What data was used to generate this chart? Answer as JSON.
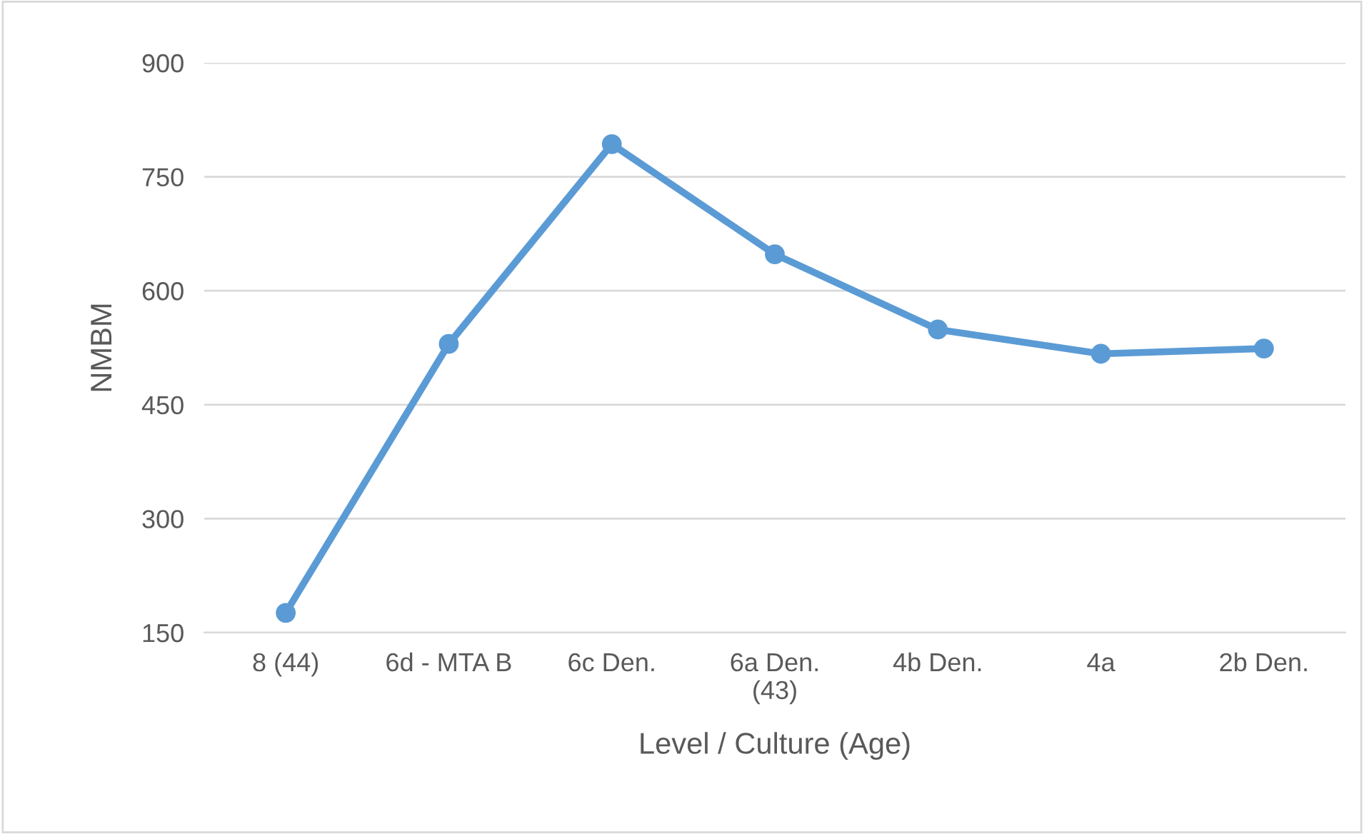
{
  "chart_data": {
    "type": "line",
    "xlabel": "Level / Culture (Age)",
    "ylabel": "NMBM",
    "categories": [
      "8 (44)",
      "6d - MTA B",
      "6c Den.",
      "6a Den.\n(43)",
      "4b Den.",
      "4a",
      "2b Den."
    ],
    "series": [
      {
        "color": "#5b9bd5",
        "values": [
          176,
          530,
          793,
          648,
          549,
          517,
          524
        ]
      }
    ],
    "ylim": [
      150,
      900
    ],
    "yticks": [
      150,
      300,
      450,
      600,
      750,
      900
    ],
    "grid": "y",
    "marker": "circle",
    "line_style": "solid"
  }
}
